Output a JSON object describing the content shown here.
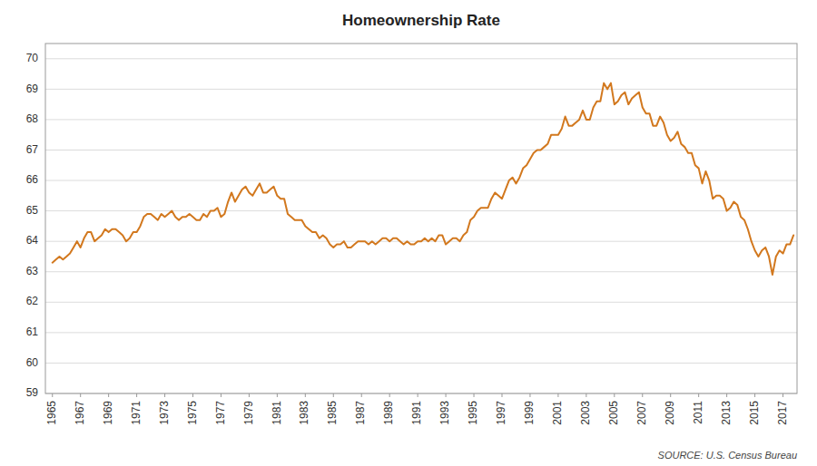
{
  "chart_data": {
    "type": "line",
    "title": "Homeownership Rate",
    "source": "SOURCE: U.S. Census Bureau",
    "color": "#D2781E",
    "grid": true,
    "xlim": [
      1964.5,
      2018.0
    ],
    "xticks": [
      1965,
      1967,
      1969,
      1971,
      1973,
      1975,
      1977,
      1979,
      1981,
      1983,
      1985,
      1987,
      1989,
      1991,
      1993,
      1995,
      1997,
      1999,
      2001,
      2003,
      2005,
      2007,
      2009,
      2011,
      2013,
      2015,
      2017
    ],
    "ylim": [
      59,
      70.5
    ],
    "yticks": [
      59,
      60,
      61,
      62,
      63,
      64,
      65,
      66,
      67,
      68,
      69,
      70
    ],
    "x": [
      1965,
      1965.25,
      1965.5,
      1965.75,
      1966,
      1966.25,
      1966.5,
      1966.75,
      1967,
      1967.25,
      1967.5,
      1967.75,
      1968,
      1968.25,
      1968.5,
      1968.75,
      1969,
      1969.25,
      1969.5,
      1969.75,
      1970,
      1970.25,
      1970.5,
      1970.75,
      1971,
      1971.25,
      1971.5,
      1971.75,
      1972,
      1972.25,
      1972.5,
      1972.75,
      1973,
      1973.25,
      1973.5,
      1973.75,
      1974,
      1974.25,
      1974.5,
      1974.75,
      1975,
      1975.25,
      1975.5,
      1975.75,
      1976,
      1976.25,
      1976.5,
      1976.75,
      1977,
      1977.25,
      1977.5,
      1977.75,
      1978,
      1978.25,
      1978.5,
      1978.75,
      1979,
      1979.25,
      1979.5,
      1979.75,
      1980,
      1980.25,
      1980.5,
      1980.75,
      1981,
      1981.25,
      1981.5,
      1981.75,
      1982,
      1982.25,
      1982.5,
      1982.75,
      1983,
      1983.25,
      1983.5,
      1983.75,
      1984,
      1984.25,
      1984.5,
      1984.75,
      1985,
      1985.25,
      1985.5,
      1985.75,
      1986,
      1986.25,
      1986.5,
      1986.75,
      1987,
      1987.25,
      1987.5,
      1987.75,
      1988,
      1988.25,
      1988.5,
      1988.75,
      1989,
      1989.25,
      1989.5,
      1989.75,
      1990,
      1990.25,
      1990.5,
      1990.75,
      1991,
      1991.25,
      1991.5,
      1991.75,
      1992,
      1992.25,
      1992.5,
      1992.75,
      1993,
      1993.25,
      1993.5,
      1993.75,
      1994,
      1994.25,
      1994.5,
      1994.75,
      1995,
      1995.25,
      1995.5,
      1995.75,
      1996,
      1996.25,
      1996.5,
      1996.75,
      1997,
      1997.25,
      1997.5,
      1997.75,
      1998,
      1998.25,
      1998.5,
      1998.75,
      1999,
      1999.25,
      1999.5,
      1999.75,
      2000,
      2000.25,
      2000.5,
      2000.75,
      2001,
      2001.25,
      2001.5,
      2001.75,
      2002,
      2002.25,
      2002.5,
      2002.75,
      2003,
      2003.25,
      2003.5,
      2003.75,
      2004,
      2004.25,
      2004.5,
      2004.75,
      2005,
      2005.25,
      2005.5,
      2005.75,
      2006,
      2006.25,
      2006.5,
      2006.75,
      2007,
      2007.25,
      2007.5,
      2007.75,
      2008,
      2008.25,
      2008.5,
      2008.75,
      2009,
      2009.25,
      2009.5,
      2009.75,
      2010,
      2010.25,
      2010.5,
      2010.75,
      2011,
      2011.25,
      2011.5,
      2011.75,
      2012,
      2012.25,
      2012.5,
      2012.75,
      2013,
      2013.25,
      2013.5,
      2013.75,
      2014,
      2014.25,
      2014.5,
      2014.75,
      2015,
      2015.25,
      2015.5,
      2015.75,
      2016,
      2016.25,
      2016.5,
      2016.75,
      2017,
      2017.25,
      2017.5,
      2017.75
    ],
    "values": [
      63.3,
      63.4,
      63.5,
      63.4,
      63.5,
      63.6,
      63.8,
      64.0,
      63.8,
      64.1,
      64.3,
      64.3,
      64.0,
      64.1,
      64.2,
      64.4,
      64.3,
      64.4,
      64.4,
      64.3,
      64.2,
      64.0,
      64.1,
      64.3,
      64.3,
      64.5,
      64.8,
      64.9,
      64.9,
      64.8,
      64.7,
      64.9,
      64.8,
      64.9,
      65.0,
      64.8,
      64.7,
      64.8,
      64.8,
      64.9,
      64.8,
      64.7,
      64.7,
      64.9,
      64.8,
      65.0,
      65.0,
      65.1,
      64.8,
      64.9,
      65.3,
      65.6,
      65.3,
      65.5,
      65.7,
      65.8,
      65.6,
      65.5,
      65.7,
      65.9,
      65.6,
      65.6,
      65.7,
      65.8,
      65.5,
      65.4,
      65.4,
      64.9,
      64.8,
      64.7,
      64.7,
      64.7,
      64.5,
      64.4,
      64.3,
      64.3,
      64.1,
      64.2,
      64.1,
      63.9,
      63.8,
      63.9,
      63.9,
      64.0,
      63.8,
      63.8,
      63.9,
      64.0,
      64.0,
      64.0,
      63.9,
      64.0,
      63.9,
      64.0,
      64.1,
      64.1,
      64.0,
      64.1,
      64.1,
      64.0,
      63.9,
      64.0,
      63.9,
      63.9,
      64.0,
      64.0,
      64.1,
      64.0,
      64.1,
      64.0,
      64.2,
      64.2,
      63.9,
      64.0,
      64.1,
      64.1,
      64.0,
      64.2,
      64.3,
      64.7,
      64.8,
      65.0,
      65.1,
      65.1,
      65.1,
      65.4,
      65.6,
      65.5,
      65.4,
      65.7,
      66.0,
      66.1,
      65.9,
      66.1,
      66.4,
      66.5,
      66.7,
      66.9,
      67.0,
      67.0,
      67.1,
      67.2,
      67.5,
      67.5,
      67.5,
      67.7,
      68.1,
      67.8,
      67.8,
      67.9,
      68.0,
      68.3,
      68.0,
      68.0,
      68.4,
      68.6,
      68.6,
      69.2,
      69.0,
      69.2,
      68.5,
      68.6,
      68.8,
      68.9,
      68.5,
      68.7,
      68.8,
      68.9,
      68.4,
      68.2,
      68.2,
      67.8,
      67.8,
      68.1,
      67.9,
      67.5,
      67.3,
      67.4,
      67.6,
      67.2,
      67.1,
      66.9,
      66.9,
      66.5,
      66.4,
      65.9,
      66.3,
      66.0,
      65.4,
      65.5,
      65.5,
      65.4,
      65.0,
      65.1,
      65.3,
      65.2,
      64.8,
      64.7,
      64.4,
      64.0,
      63.7,
      63.5,
      63.7,
      63.8,
      63.5,
      62.9,
      63.5,
      63.7,
      63.6,
      63.9,
      63.9,
      64.2
    ]
  }
}
